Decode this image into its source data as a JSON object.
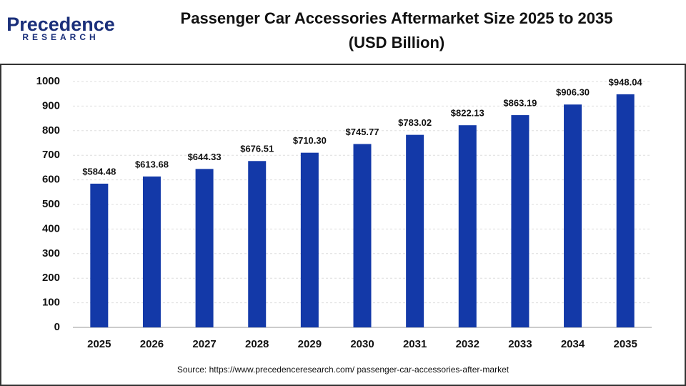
{
  "logo": {
    "name": "Precedence",
    "sub": "RESEARCH"
  },
  "chart_data": {
    "type": "bar",
    "title": "Passenger Car Accessories Aftermarket  Size 2025 to 2035",
    "subtitle": "(USD Billion)",
    "categories": [
      "2025",
      "2026",
      "2027",
      "2028",
      "2029",
      "2030",
      "2031",
      "2032",
      "2033",
      "2034",
      "2035"
    ],
    "values": [
      584.48,
      613.68,
      644.33,
      676.51,
      710.3,
      745.77,
      783.02,
      822.13,
      863.19,
      906.3,
      948.04
    ],
    "value_labels": [
      "$584.48",
      "$613.68",
      "$644.33",
      "$676.51",
      "$710.30",
      "$745.77",
      "$783.02",
      "$822.13",
      "$863.19",
      "$906.30",
      "$948.04"
    ],
    "color": "#1339a8",
    "ylim": [
      0,
      1000
    ],
    "yticks": [
      0,
      100,
      200,
      300,
      400,
      500,
      600,
      700,
      800,
      900,
      1000
    ],
    "grid": true,
    "source": "Source: https://www.precedenceresearch.com/ passenger-car-accessories-after-market"
  }
}
